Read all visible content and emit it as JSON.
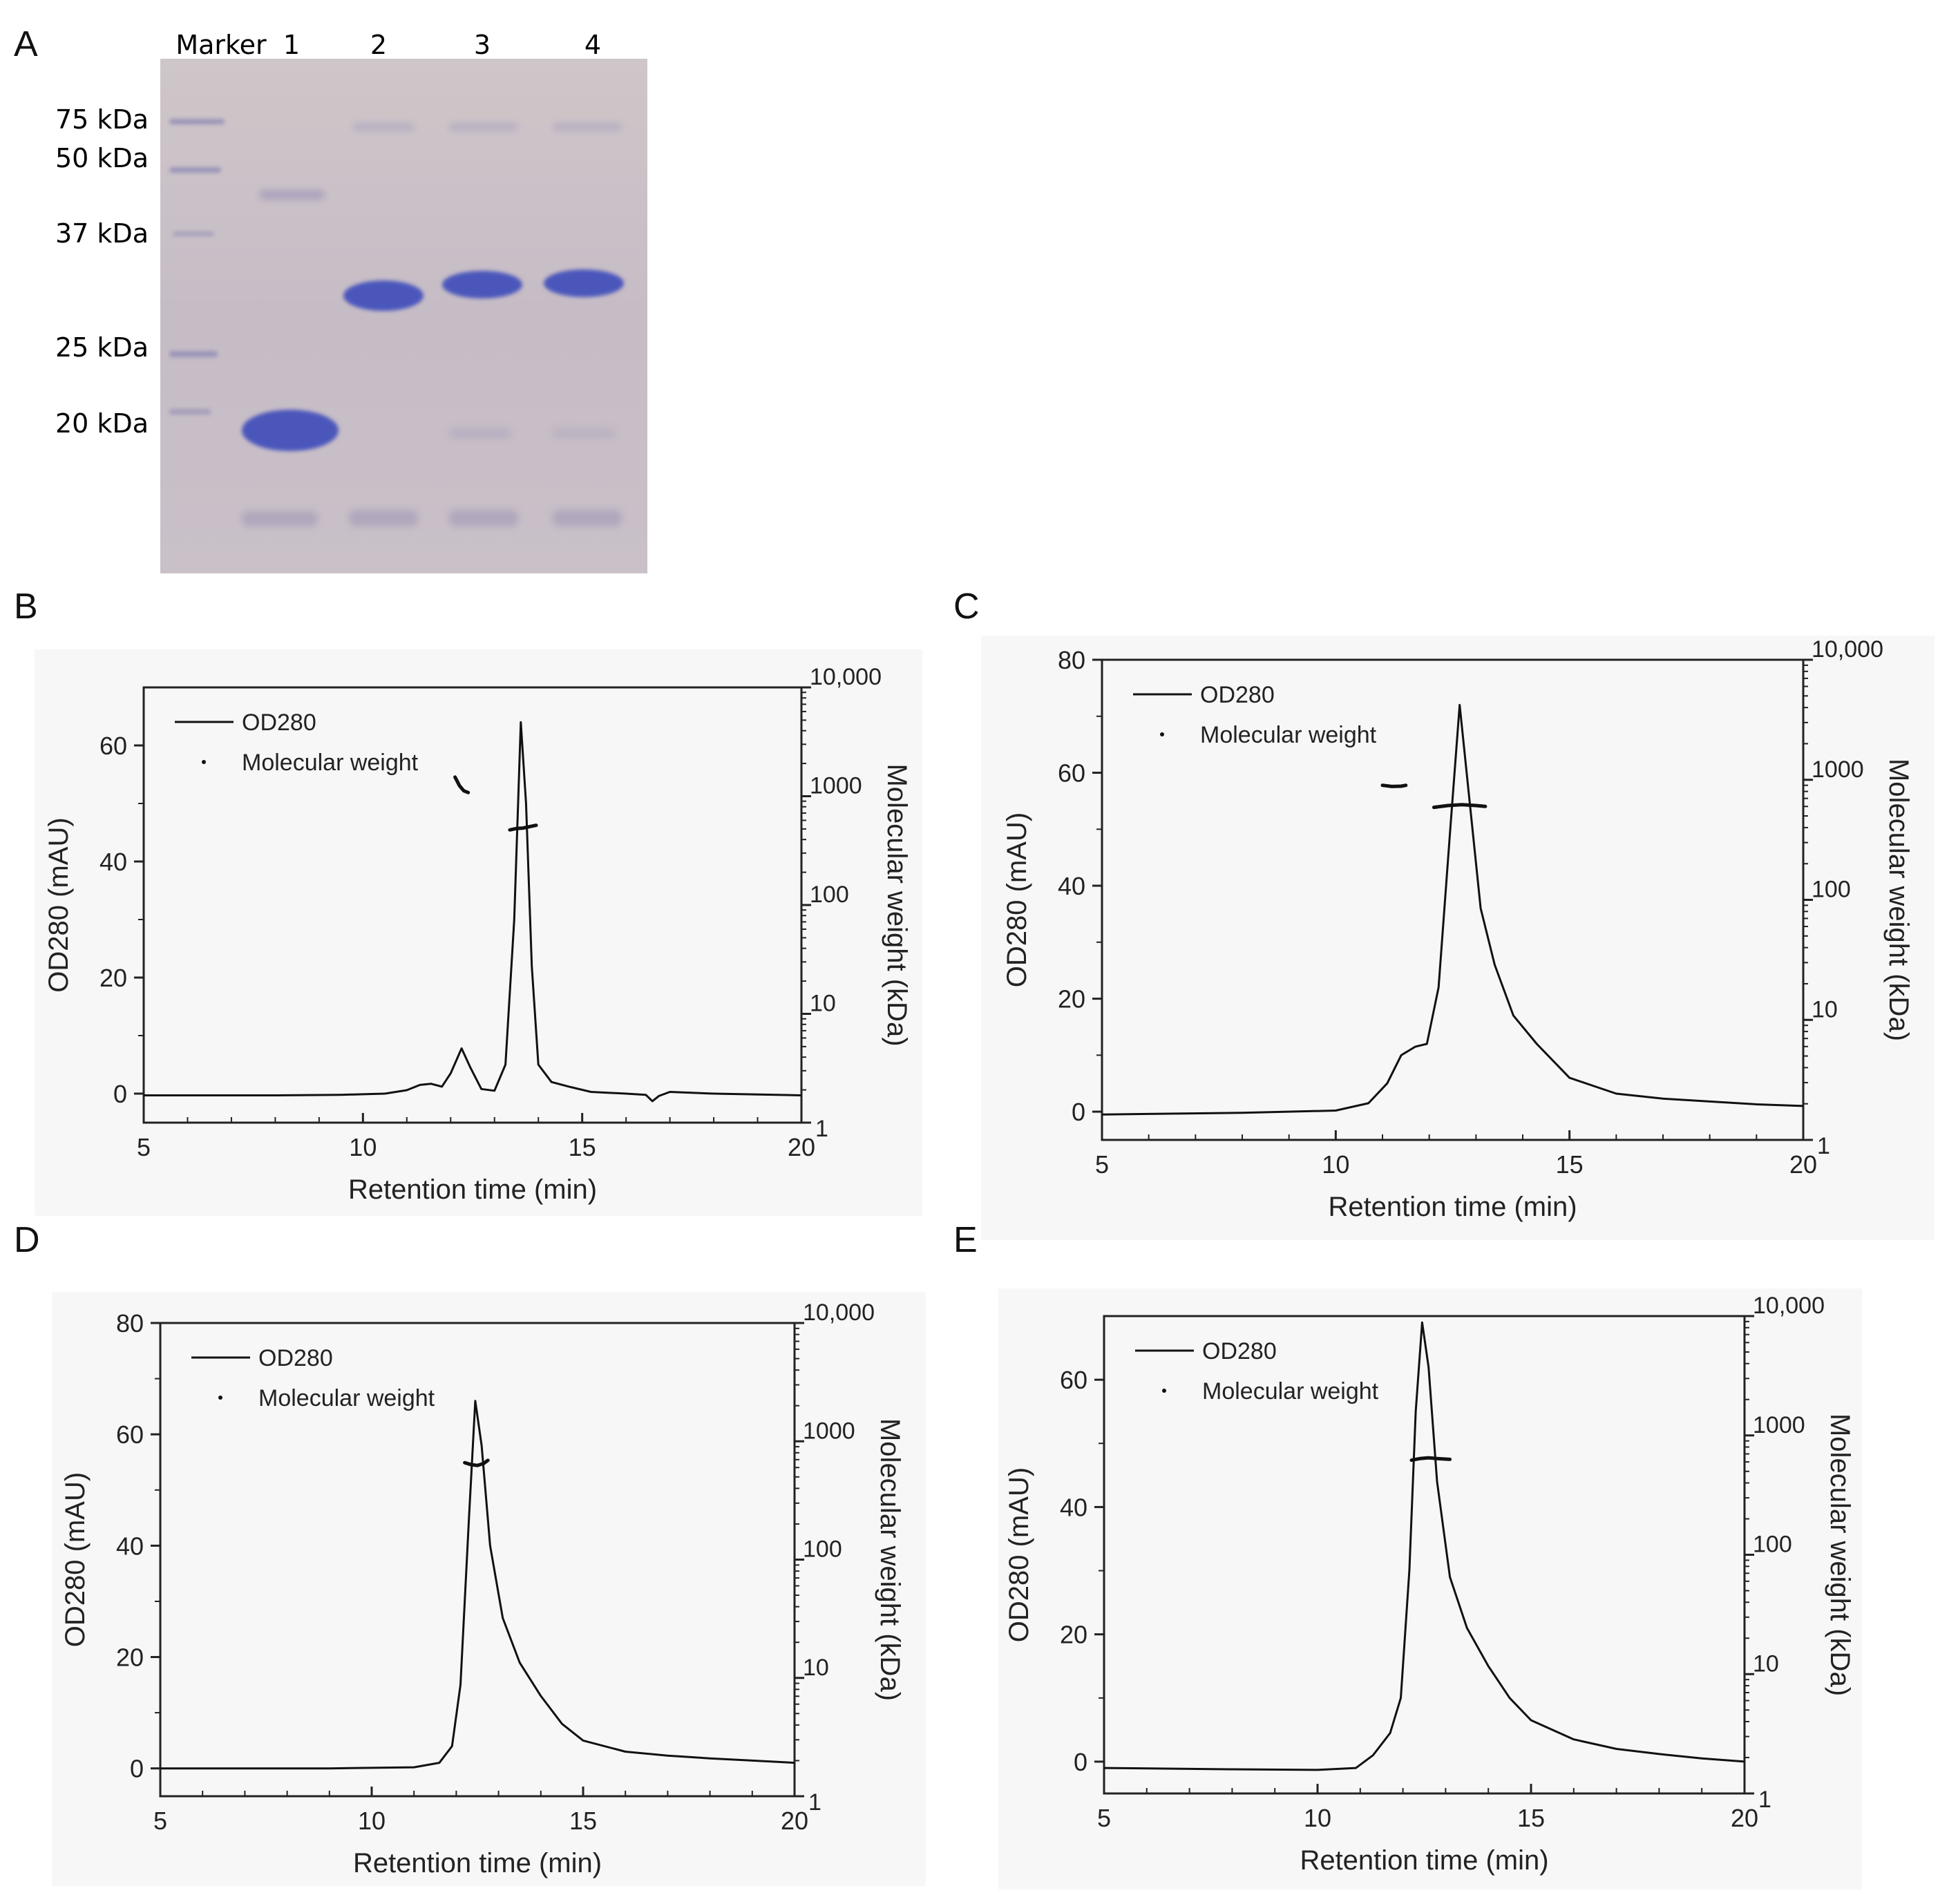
{
  "panels": {
    "A": "A",
    "B": "B",
    "C": "C",
    "D": "D",
    "E": "E"
  },
  "gel": {
    "lane_labels": [
      "Marker",
      "1",
      "2",
      "3",
      "4"
    ],
    "marker_labels": [
      "75 kDa",
      "50 kDa",
      "37 kDa",
      "25 kDa",
      "20 kDa"
    ],
    "background": "#c8bfc6",
    "band_color": "#4a55b8"
  },
  "chart_data": [
    {
      "id": "B",
      "type": "line",
      "xlabel": "Retention time (min)",
      "ylabel": "OD280 (mAU)",
      "y2label": "Molecular weight (kDa)",
      "xlim": [
        5,
        20
      ],
      "xticks": [
        5,
        10,
        15,
        20
      ],
      "ylim": [
        -5,
        70
      ],
      "yticks": [
        0,
        20,
        40,
        60
      ],
      "y2lim": [
        1,
        10000
      ],
      "y2ticks": [
        "1",
        "10",
        "100",
        "1000",
        "10,000"
      ],
      "legend": [
        "OD280",
        "Molecular weight"
      ],
      "od280": [
        [
          5,
          -0.3
        ],
        [
          8,
          -0.3
        ],
        [
          9.5,
          -0.2
        ],
        [
          10.5,
          0
        ],
        [
          11,
          0.6
        ],
        [
          11.3,
          1.5
        ],
        [
          11.55,
          1.7
        ],
        [
          11.8,
          1.2
        ],
        [
          12,
          3.5
        ],
        [
          12.25,
          7.8
        ],
        [
          12.45,
          4.5
        ],
        [
          12.7,
          0.8
        ],
        [
          13,
          0.5
        ],
        [
          13.25,
          5
        ],
        [
          13.45,
          30
        ],
        [
          13.6,
          64
        ],
        [
          13.72,
          50
        ],
        [
          13.85,
          22
        ],
        [
          14,
          5
        ],
        [
          14.3,
          2
        ],
        [
          14.7,
          1.2
        ],
        [
          15.2,
          0.3
        ],
        [
          16,
          0
        ],
        [
          16.45,
          -0.2
        ],
        [
          16.6,
          -1.3
        ],
        [
          16.75,
          -0.4
        ],
        [
          17,
          0.3
        ],
        [
          18,
          0
        ],
        [
          20,
          -0.3
        ]
      ],
      "mw": [
        [
          [
            12.1,
            1500
          ],
          [
            12.2,
            1250
          ],
          [
            12.3,
            1120
          ],
          [
            12.4,
            1080
          ]
        ],
        [
          [
            13.35,
            490
          ],
          [
            13.5,
            505
          ],
          [
            13.65,
            510
          ],
          [
            13.8,
            525
          ],
          [
            13.95,
            540
          ]
        ]
      ]
    },
    {
      "id": "C",
      "type": "line",
      "xlabel": "Retention time (min)",
      "ylabel": "OD280 (mAU)",
      "y2label": "Molecular weight (kDa)",
      "xlim": [
        5,
        20
      ],
      "xticks": [
        5,
        10,
        15,
        20
      ],
      "ylim": [
        -5,
        80
      ],
      "yticks": [
        0,
        20,
        40,
        60,
        80
      ],
      "y2lim": [
        1,
        10000
      ],
      "y2ticks": [
        "1",
        "10",
        "100",
        "1000",
        "10,000"
      ],
      "legend": [
        "OD280",
        "Molecular weight"
      ],
      "od280": [
        [
          5,
          -0.5
        ],
        [
          8,
          -0.2
        ],
        [
          10,
          0.2
        ],
        [
          10.7,
          1.5
        ],
        [
          11.1,
          5
        ],
        [
          11.4,
          10
        ],
        [
          11.7,
          11.5
        ],
        [
          11.95,
          12
        ],
        [
          12.2,
          22
        ],
        [
          12.45,
          50
        ],
        [
          12.65,
          72
        ],
        [
          12.85,
          56
        ],
        [
          13.1,
          36
        ],
        [
          13.4,
          26
        ],
        [
          13.8,
          17
        ],
        [
          14.3,
          12
        ],
        [
          15,
          6
        ],
        [
          16,
          3.2
        ],
        [
          17,
          2.3
        ],
        [
          18,
          1.8
        ],
        [
          19,
          1.3
        ],
        [
          20,
          1
        ]
      ],
      "mw": [
        [
          [
            11.0,
            900
          ],
          [
            11.2,
            880
          ],
          [
            11.4,
            885
          ],
          [
            11.5,
            900
          ]
        ],
        [
          [
            12.1,
            590
          ],
          [
            12.4,
            610
          ],
          [
            12.7,
            620
          ],
          [
            13.0,
            610
          ],
          [
            13.2,
            600
          ]
        ]
      ]
    },
    {
      "id": "D",
      "type": "line",
      "xlabel": "Retention time (min)",
      "ylabel": "OD280 (mAU)",
      "y2label": "Molecular weight (kDa)",
      "xlim": [
        5,
        20
      ],
      "xticks": [
        5,
        10,
        15,
        20
      ],
      "ylim": [
        -5,
        80
      ],
      "yticks": [
        0,
        20,
        40,
        60,
        80
      ],
      "y2lim": [
        1,
        10000
      ],
      "y2ticks": [
        "1",
        "10",
        "100",
        "1000",
        "10,000"
      ],
      "legend": [
        "OD280",
        "Molecular weight"
      ],
      "od280": [
        [
          5,
          0
        ],
        [
          9,
          0
        ],
        [
          11,
          0.2
        ],
        [
          11.6,
          1
        ],
        [
          11.9,
          4
        ],
        [
          12.1,
          15
        ],
        [
          12.3,
          45
        ],
        [
          12.45,
          66
        ],
        [
          12.6,
          58
        ],
        [
          12.8,
          40
        ],
        [
          13.1,
          27
        ],
        [
          13.5,
          19
        ],
        [
          14,
          13
        ],
        [
          14.5,
          8
        ],
        [
          15,
          5
        ],
        [
          16,
          3
        ],
        [
          17,
          2.3
        ],
        [
          18,
          1.8
        ],
        [
          19,
          1.4
        ],
        [
          20,
          1
        ]
      ],
      "mw": [
        [
          [
            12.2,
            660
          ],
          [
            12.35,
            635
          ],
          [
            12.5,
            625
          ],
          [
            12.65,
            650
          ],
          [
            12.75,
            690
          ]
        ]
      ]
    },
    {
      "id": "E",
      "type": "line",
      "xlabel": "Retention time (min)",
      "ylabel": "OD280 (mAU)",
      "y2label": "Molecular weight (kDa)",
      "xlim": [
        5,
        20
      ],
      "xticks": [
        5,
        10,
        15,
        20
      ],
      "ylim": [
        -5,
        70
      ],
      "yticks": [
        0,
        20,
        40,
        60
      ],
      "y2lim": [
        1,
        10000
      ],
      "y2ticks": [
        "1",
        "10",
        "100",
        "1000",
        "10,000"
      ],
      "legend": [
        "OD280",
        "Molecular weight"
      ],
      "od280": [
        [
          5,
          -1
        ],
        [
          8,
          -1.2
        ],
        [
          10,
          -1.3
        ],
        [
          10.9,
          -1
        ],
        [
          11.3,
          1
        ],
        [
          11.7,
          4.5
        ],
        [
          11.95,
          10
        ],
        [
          12.15,
          30
        ],
        [
          12.3,
          55
        ],
        [
          12.45,
          69
        ],
        [
          12.6,
          62
        ],
        [
          12.8,
          44
        ],
        [
          13.1,
          29
        ],
        [
          13.5,
          21
        ],
        [
          14,
          15
        ],
        [
          14.5,
          10
        ],
        [
          15,
          6.5
        ],
        [
          16,
          3.5
        ],
        [
          17,
          2
        ],
        [
          18,
          1.2
        ],
        [
          19,
          0.5
        ],
        [
          20,
          0
        ]
      ],
      "mw": [
        [
          [
            12.2,
            620
          ],
          [
            12.4,
            640
          ],
          [
            12.6,
            650
          ],
          [
            12.8,
            640
          ],
          [
            13.1,
            630
          ]
        ]
      ]
    }
  ]
}
